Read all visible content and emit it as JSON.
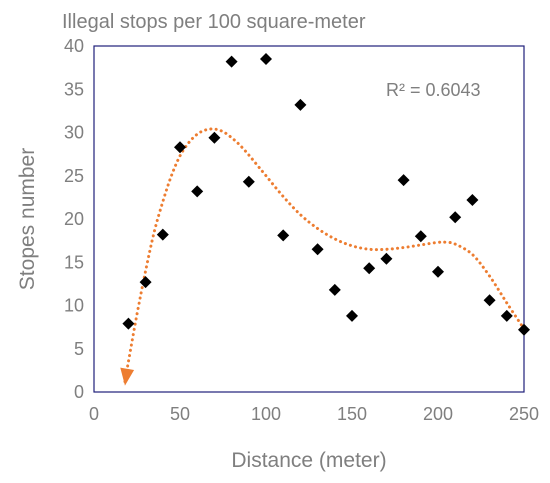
{
  "chart_data": {
    "type": "scatter",
    "title": "Illegal stops per 100 square-meter",
    "xlabel": "Distance (meter)",
    "ylabel": "Stopes number",
    "xlim": [
      0,
      250
    ],
    "ylim": [
      0,
      40
    ],
    "xticks": [
      0,
      50,
      100,
      150,
      200,
      250
    ],
    "yticks": [
      0,
      5,
      10,
      15,
      20,
      25,
      30,
      35,
      40
    ],
    "grid": false,
    "annotation": "R² = 0.6043",
    "colors": {
      "points": "#000000",
      "trendline": "#ed7d31",
      "frame": "#1f1f7a",
      "text": "#7f7f7f"
    },
    "series": [
      {
        "type": "scatter",
        "marker": "diamond",
        "x": [
          20,
          30,
          40,
          50,
          60,
          70,
          80,
          90,
          100,
          110,
          120,
          130,
          140,
          150,
          160,
          170,
          180,
          190,
          200,
          210,
          220,
          230,
          240,
          250
        ],
        "y": [
          7.9,
          12.7,
          18.2,
          28.3,
          23.2,
          29.4,
          38.2,
          24.3,
          38.5,
          18.1,
          33.2,
          16.5,
          11.8,
          8.8,
          14.3,
          15.4,
          24.5,
          18,
          13.9,
          20.2,
          22.2,
          10.6,
          8.8,
          7.2
        ]
      },
      {
        "type": "trendline",
        "style": "dotted",
        "arrow_at": "start",
        "x": [
          18,
          20,
          25,
          30,
          35,
          40,
          45,
          50,
          55,
          60,
          65,
          70,
          75,
          80,
          85,
          90,
          95,
          100,
          110,
          120,
          130,
          140,
          150,
          160,
          170,
          180,
          190,
          200,
          205,
          210,
          220,
          230,
          240,
          250
        ],
        "y": [
          1.2,
          3.5,
          9.0,
          14.0,
          18.5,
          22.0,
          25.0,
          27.3,
          28.8,
          29.8,
          30.3,
          30.4,
          30.1,
          29.4,
          28.5,
          27.4,
          26.2,
          25.0,
          22.6,
          20.5,
          18.9,
          17.7,
          16.9,
          16.5,
          16.5,
          16.7,
          17.0,
          17.3,
          17.3,
          17.1,
          15.9,
          13.4,
          10.3,
          7.3
        ]
      }
    ]
  }
}
